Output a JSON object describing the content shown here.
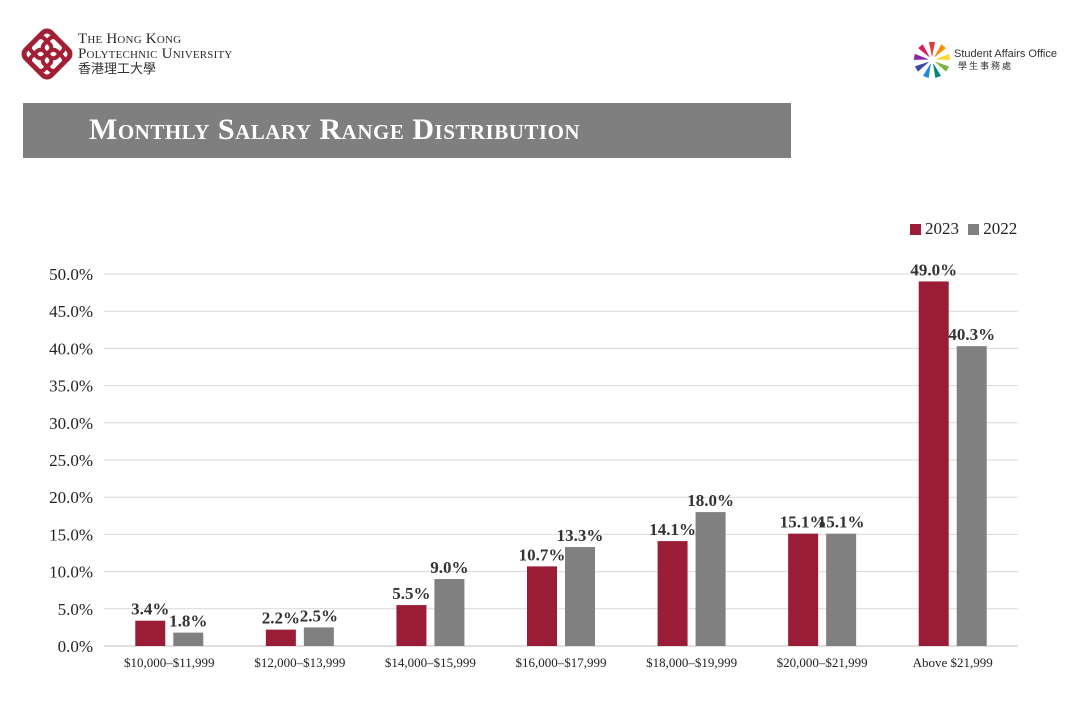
{
  "header": {
    "university_name_line1": "The Hong Kong",
    "university_name_line2": "Polytechnic University",
    "university_name_zh": "香港理工大學",
    "office_name": "Student Affairs Office",
    "office_name_zh": "學生事務處"
  },
  "banner": {
    "title": "Monthly Salary Range Distribution"
  },
  "colors": {
    "series_2023": "#9b1c36",
    "series_2022": "#808080",
    "banner": "#7f7f7f",
    "grid": "#d9d9d9"
  },
  "chart_data": {
    "type": "bar",
    "categories": [
      "$10,000–$11,999",
      "$12,000–$13,999",
      "$14,000–$15,999",
      "$16,000–$17,999",
      "$18,000–$19,999",
      "$20,000–$21,999",
      "Above $21,999"
    ],
    "series": [
      {
        "name": "2023",
        "values": [
          3.4,
          2.2,
          5.5,
          10.7,
          14.1,
          15.1,
          49.0
        ],
        "labels": [
          "3.4%",
          "2.2%",
          "5.5%",
          "10.7%",
          "14.1%",
          "15.1%",
          "49.0%"
        ]
      },
      {
        "name": "2022",
        "values": [
          1.8,
          2.5,
          9.0,
          13.3,
          18.0,
          15.1,
          40.3
        ],
        "labels": [
          "1.8%",
          "2.5%",
          "9.0%",
          "13.3%",
          "18.0%",
          "15.1%",
          "40.3%"
        ]
      }
    ],
    "yticks": [
      "0.0%",
      "5.0%",
      "10.0%",
      "15.0%",
      "20.0%",
      "25.0%",
      "30.0%",
      "35.0%",
      "40.0%",
      "45.0%",
      "50.0%"
    ],
    "ylim": [
      0,
      50
    ],
    "grid": true,
    "legend_position": "top-right"
  }
}
